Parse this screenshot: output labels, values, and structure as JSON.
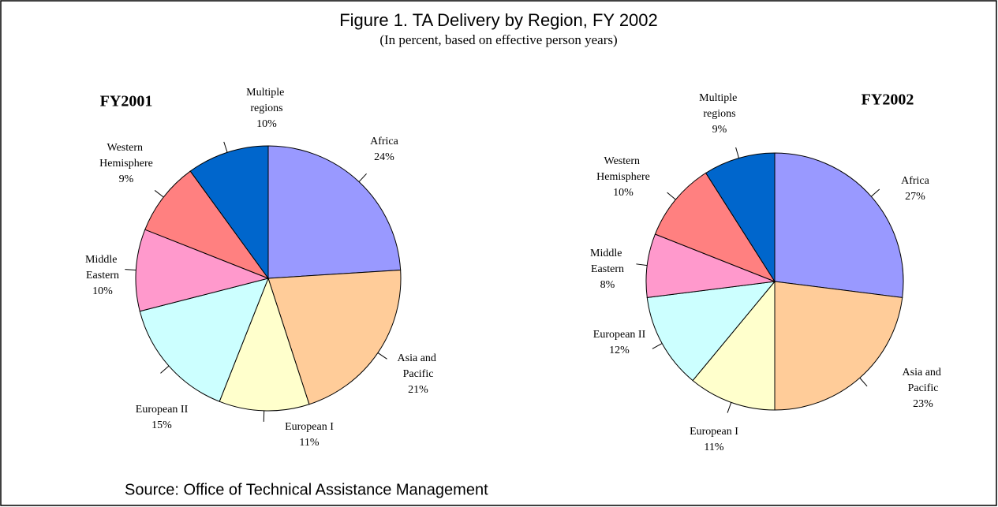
{
  "title": "Figure 1. TA Delivery by Region, FY 2002",
  "subtitle": "(In percent, based on effective person years)",
  "source": "Source: Office of Technical Assistance Management",
  "chart_data": [
    {
      "type": "pie",
      "title": "FY2001",
      "categories": [
        "Africa",
        "Asia and Pacific",
        "European I",
        "European II",
        "Middle Eastern",
        "Western Hemisphere",
        "Multiple regions"
      ],
      "values": [
        24,
        21,
        11,
        15,
        10,
        9,
        10
      ],
      "value_labels": [
        "24%",
        "21%",
        "11%",
        "15%",
        "10%",
        "9%",
        "10%"
      ],
      "colors": [
        "#9999ff",
        "#ffcc99",
        "#ffffcc",
        "#ccffff",
        "#ff99cc",
        "#ff8080",
        "#0066cc"
      ]
    },
    {
      "type": "pie",
      "title": "FY2002",
      "categories": [
        "Africa",
        "Asia and Pacific",
        "European I",
        "European II",
        "Middle Eastern",
        "Western Hemisphere",
        "Multiple regions"
      ],
      "values": [
        27,
        23,
        11,
        12,
        8,
        10,
        9
      ],
      "value_labels": [
        "27%",
        "23%",
        "11%",
        "12%",
        "8%",
        "10%",
        "9%"
      ],
      "colors": [
        "#9999ff",
        "#ffcc99",
        "#ffffcc",
        "#ccffff",
        "#ff99cc",
        "#ff8080",
        "#0066cc"
      ]
    }
  ]
}
